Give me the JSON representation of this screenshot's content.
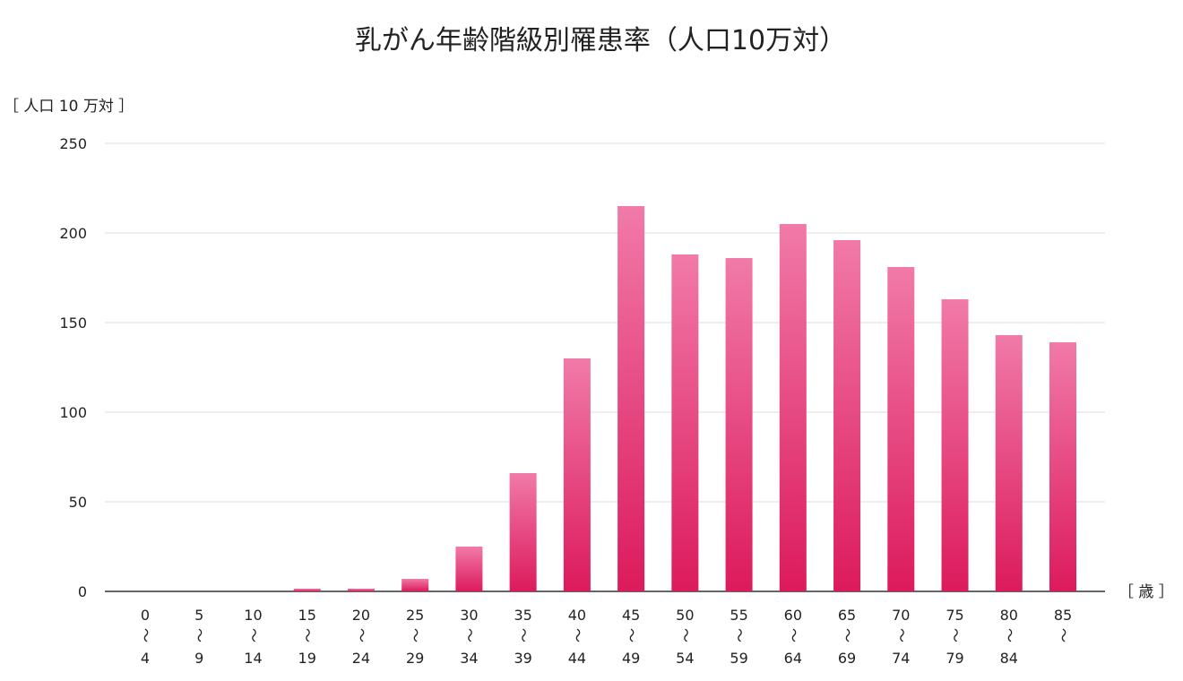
{
  "chart_data": {
    "type": "bar",
    "title": "乳がん年齢階級別罹患率（人口10万対）",
    "ylabel": "［ 人口 10 万対 ］",
    "xlabel": "［ 歳 ］",
    "ylim": [
      0,
      250
    ],
    "yticks": [
      0,
      50,
      100,
      150,
      200,
      250
    ],
    "grid": true,
    "categories": [
      {
        "from": "0",
        "to": "4"
      },
      {
        "from": "5",
        "to": "9"
      },
      {
        "from": "10",
        "to": "14"
      },
      {
        "from": "15",
        "to": "19"
      },
      {
        "from": "20",
        "to": "24"
      },
      {
        "from": "25",
        "to": "29"
      },
      {
        "from": "30",
        "to": "34"
      },
      {
        "from": "35",
        "to": "39"
      },
      {
        "from": "40",
        "to": "44"
      },
      {
        "from": "45",
        "to": "49"
      },
      {
        "from": "50",
        "to": "54"
      },
      {
        "from": "55",
        "to": "59"
      },
      {
        "from": "60",
        "to": "64"
      },
      {
        "from": "65",
        "to": "69"
      },
      {
        "from": "70",
        "to": "74"
      },
      {
        "from": "75",
        "to": "79"
      },
      {
        "from": "80",
        "to": "84"
      },
      {
        "from": "85",
        "to": ""
      }
    ],
    "range_mark": "〜",
    "values": [
      0,
      0,
      0,
      1.5,
      1.5,
      7,
      25,
      66,
      130,
      215,
      188,
      186,
      205,
      196,
      181,
      163,
      143,
      139
    ],
    "colors": {
      "bar_top": "#f17aa8",
      "bar_bottom": "#dc1a5c",
      "grid": "#dddddd",
      "axis": "#666666"
    }
  }
}
